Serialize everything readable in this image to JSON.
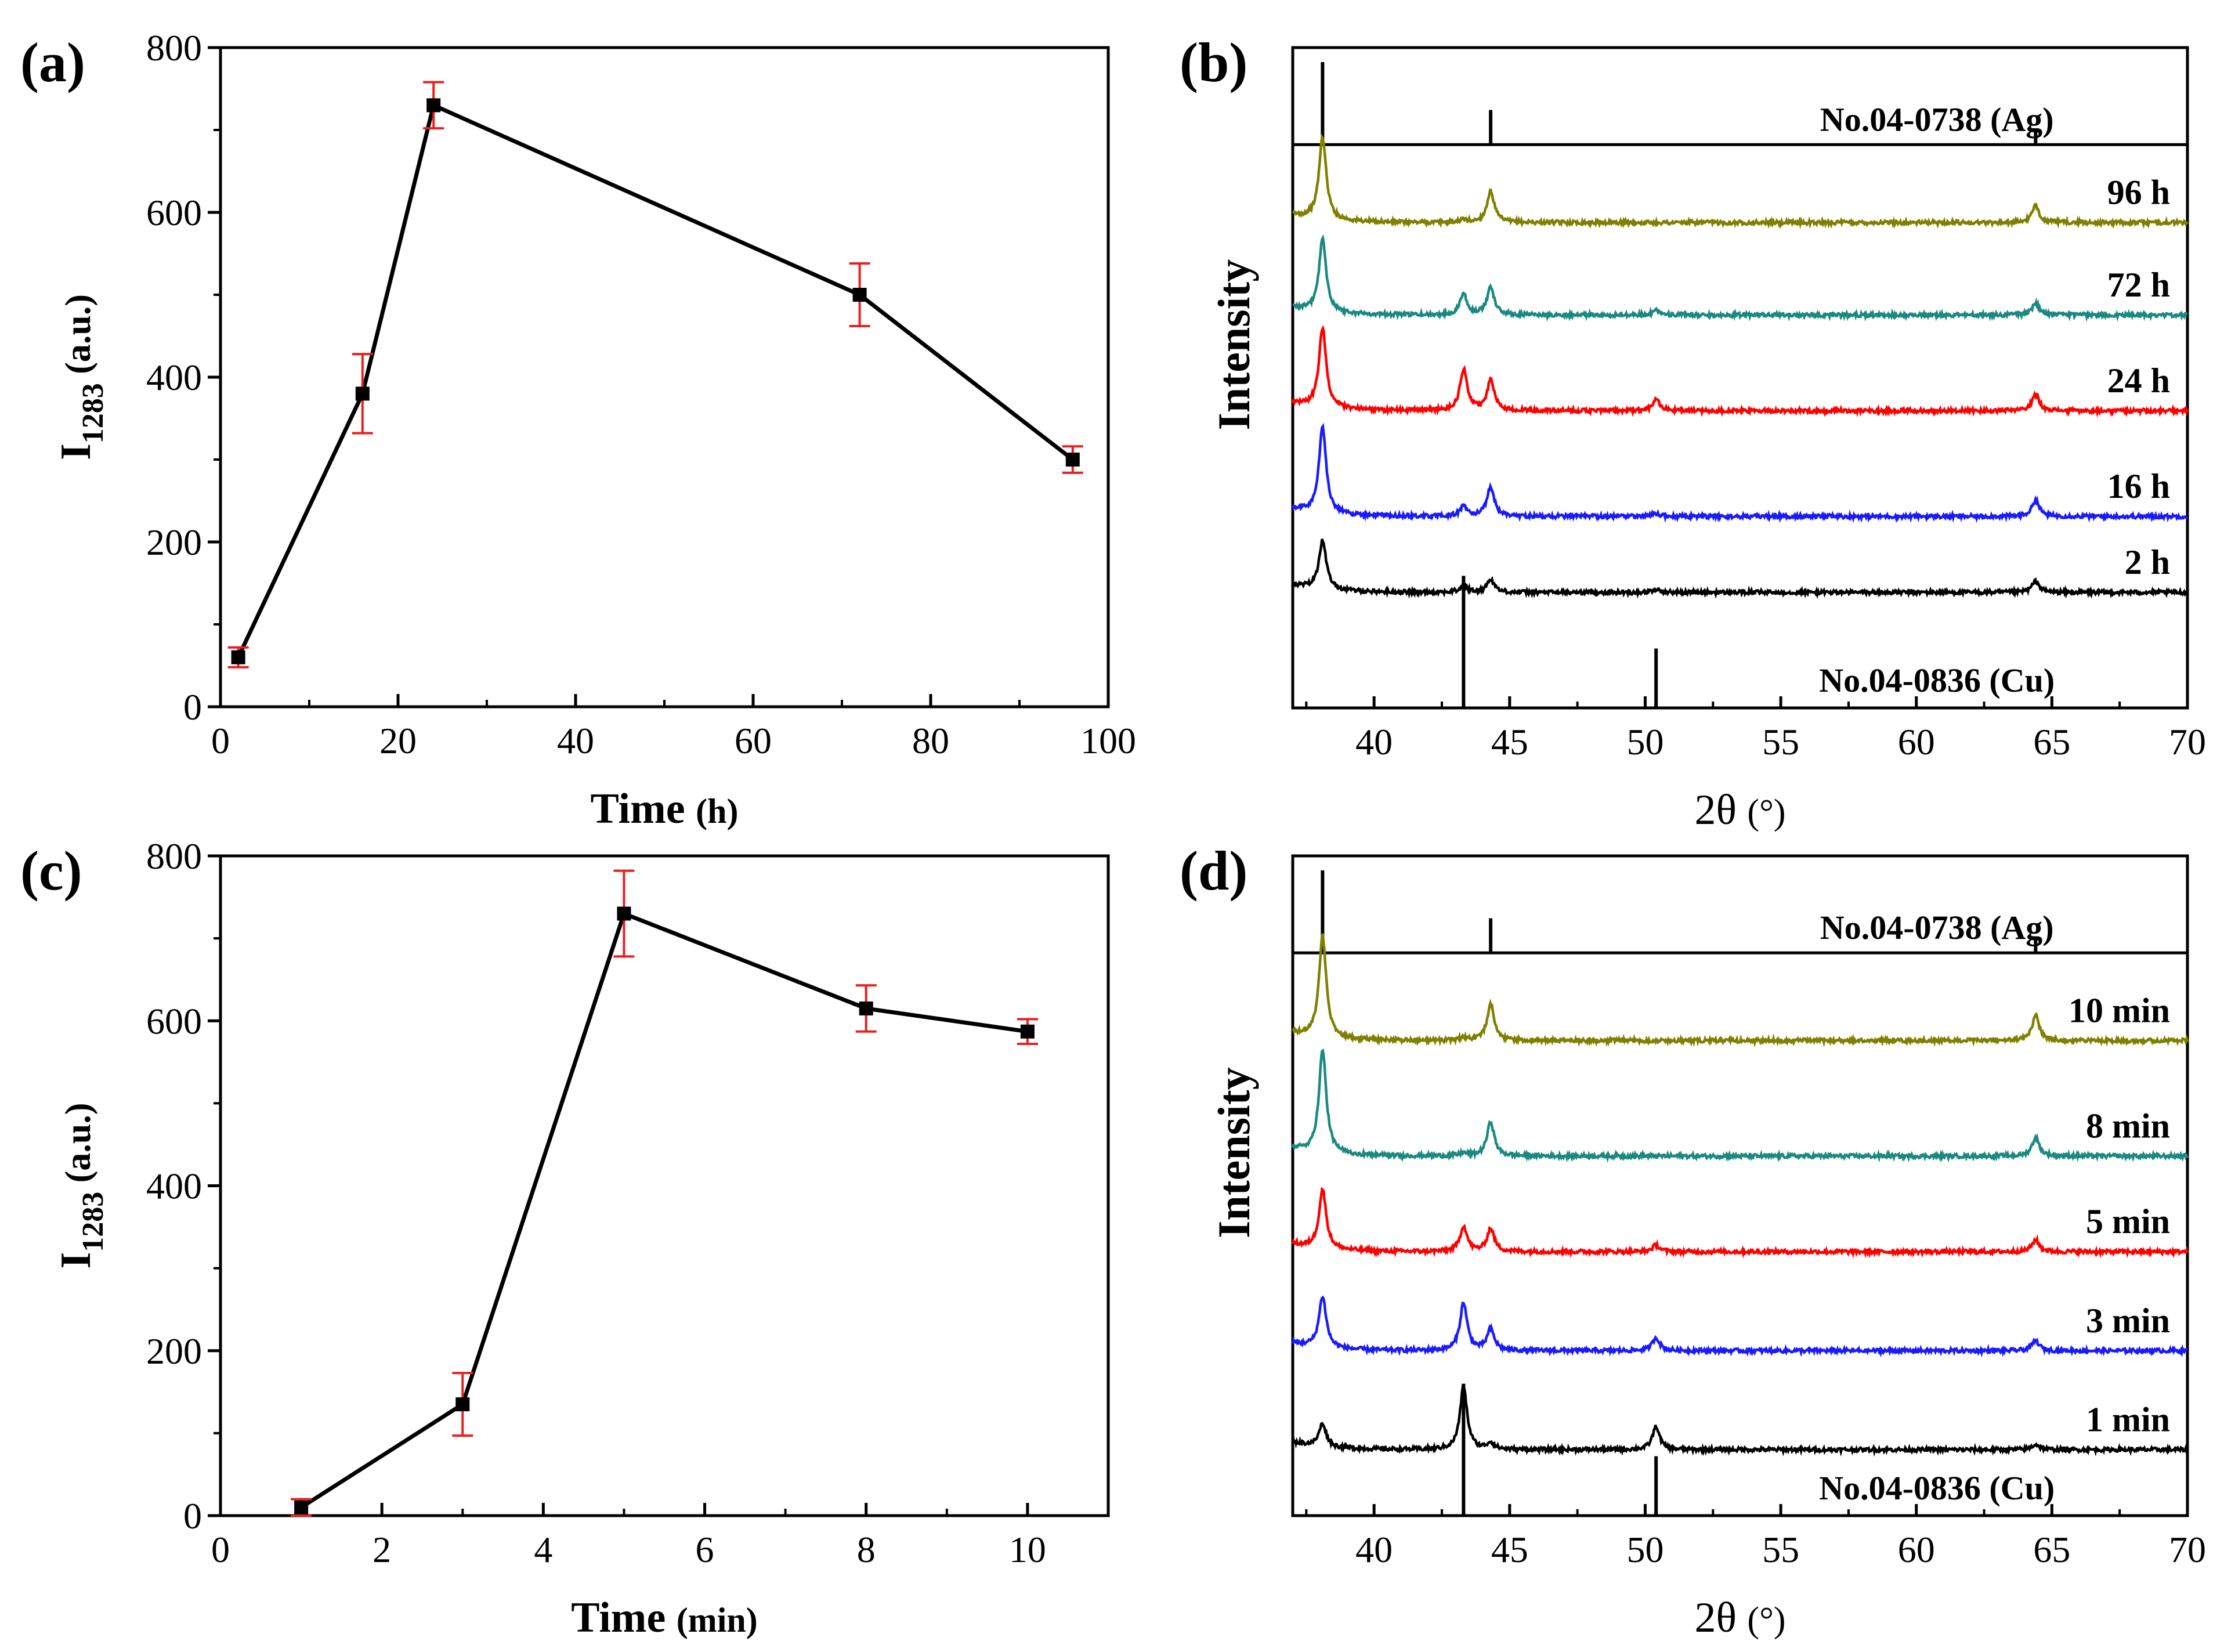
{
  "chart_data": [
    {
      "panel_label": "(a)",
      "type": "line",
      "xlabel": "Time",
      "xunit": "(h)",
      "ylabel": "I",
      "ylabel_sub": "1283",
      "yunit": "(a.u.)",
      "xlim": [
        0,
        100
      ],
      "ylim": [
        0,
        800
      ],
      "xticks": [
        0,
        20,
        40,
        60,
        80,
        100
      ],
      "yticks": [
        0,
        200,
        400,
        600,
        800
      ],
      "x": [
        2,
        16,
        24,
        72,
        96
      ],
      "y": [
        60,
        380,
        730,
        500,
        300
      ],
      "yerr": [
        12,
        48,
        28,
        38,
        16
      ],
      "colors": {
        "line": "#000000",
        "marker": "#000000",
        "errorbar": "#e8201f"
      }
    },
    {
      "panel_label": "(b)",
      "type": "line",
      "xlabel": "2θ",
      "xunit": "(°)",
      "ylabel": "Intensity",
      "xlim": [
        37,
        70
      ],
      "xticks": [
        40,
        45,
        50,
        55,
        60,
        65,
        70
      ],
      "reference_top": {
        "label": "No.04-0738 (Ag)",
        "peaks": [
          38.1,
          44.3,
          64.4
        ],
        "heights": [
          1.0,
          0.42,
          0.18
        ]
      },
      "reference_bottom": {
        "label": "No.04-0836 (Cu)",
        "peaks": [
          43.3,
          50.4
        ],
        "heights": [
          1.0,
          0.45
        ]
      },
      "series": [
        {
          "name": "96 h",
          "color": "#808000",
          "baseline": 0.735,
          "peaks": [
            [
              38.1,
              0.125
            ],
            [
              43.3,
              0.004
            ],
            [
              44.3,
              0.048
            ],
            [
              50.4,
              0.0
            ],
            [
              64.4,
              0.025
            ]
          ]
        },
        {
          "name": "72 h",
          "color": "#1a8a80",
          "baseline": 0.595,
          "peaks": [
            [
              38.1,
              0.11
            ],
            [
              43.3,
              0.032
            ],
            [
              44.3,
              0.042
            ],
            [
              50.4,
              0.008
            ],
            [
              64.4,
              0.018
            ]
          ]
        },
        {
          "name": "24 h",
          "color": "#ff0000",
          "baseline": 0.45,
          "peaks": [
            [
              38.1,
              0.122
            ],
            [
              43.3,
              0.062
            ],
            [
              44.3,
              0.045
            ],
            [
              50.4,
              0.018
            ],
            [
              64.4,
              0.025
            ]
          ]
        },
        {
          "name": "16 h",
          "color": "#1a1aff",
          "baseline": 0.29,
          "peaks": [
            [
              38.1,
              0.13
            ],
            [
              43.3,
              0.015
            ],
            [
              44.3,
              0.045
            ],
            [
              50.4,
              0.004
            ],
            [
              64.4,
              0.025
            ]
          ]
        },
        {
          "name": "2 h",
          "color": "#000000",
          "baseline": 0.175,
          "peaks": [
            [
              38.1,
              0.075
            ],
            [
              43.3,
              0.01
            ],
            [
              44.3,
              0.02
            ],
            [
              50.4,
              0.004
            ],
            [
              64.4,
              0.017
            ]
          ]
        }
      ]
    },
    {
      "panel_label": "(c)",
      "type": "line",
      "xlabel": "Time",
      "xunit": "(min)",
      "ylabel": "I",
      "ylabel_sub": "1283",
      "yunit": "(a.u.)",
      "xlim": [
        0,
        11
      ],
      "ylim": [
        0,
        800
      ],
      "xticks": [
        0,
        2,
        4,
        6,
        8,
        10
      ],
      "yticks": [
        0,
        200,
        400,
        600,
        800
      ],
      "x": [
        1,
        3,
        5,
        8,
        10
      ],
      "y": [
        10,
        135,
        730,
        615,
        587
      ],
      "yerr": [
        10,
        38,
        52,
        28,
        15
      ],
      "colors": {
        "line": "#000000",
        "marker": "#000000",
        "errorbar": "#e8201f"
      }
    },
    {
      "panel_label": "(d)",
      "type": "line",
      "xlabel": "2θ",
      "xunit": "(°)",
      "ylabel": "Intensity",
      "xlim": [
        37,
        70
      ],
      "xticks": [
        40,
        45,
        50,
        55,
        60,
        65,
        70
      ],
      "reference_top": {
        "label": "No.04-0738 (Ag)",
        "peaks": [
          38.1,
          44.3,
          64.4
        ],
        "heights": [
          1.0,
          0.42,
          0.18
        ]
      },
      "reference_bottom": {
        "label": "No.04-0836 (Cu)",
        "peaks": [
          43.3,
          50.4
        ],
        "heights": [
          1.0,
          0.45
        ]
      },
      "series": [
        {
          "name": "10 min",
          "color": "#808000",
          "baseline": 0.72,
          "peaks": [
            [
              38.1,
              0.155
            ],
            [
              43.3,
              0.004
            ],
            [
              44.3,
              0.055
            ],
            [
              50.4,
              0.0
            ],
            [
              64.4,
              0.038
            ]
          ]
        },
        {
          "name": "8 min",
          "color": "#1a8a80",
          "baseline": 0.545,
          "peaks": [
            [
              38.1,
              0.158
            ],
            [
              43.3,
              0.004
            ],
            [
              44.3,
              0.052
            ],
            [
              50.4,
              0.0
            ],
            [
              64.4,
              0.028
            ]
          ]
        },
        {
          "name": "5 min",
          "color": "#ff0000",
          "baseline": 0.4,
          "peaks": [
            [
              38.1,
              0.09
            ],
            [
              43.3,
              0.038
            ],
            [
              44.3,
              0.035
            ],
            [
              50.4,
              0.01
            ],
            [
              64.4,
              0.018
            ]
          ]
        },
        {
          "name": "3 min",
          "color": "#1a1aff",
          "baseline": 0.25,
          "peaks": [
            [
              38.1,
              0.078
            ],
            [
              43.3,
              0.072
            ],
            [
              44.3,
              0.032
            ],
            [
              50.4,
              0.02
            ],
            [
              64.4,
              0.015
            ]
          ]
        },
        {
          "name": "1 min",
          "color": "#000000",
          "baseline": 0.1,
          "peaks": [
            [
              38.1,
              0.035
            ],
            [
              43.3,
              0.095
            ],
            [
              44.3,
              0.01
            ],
            [
              50.4,
              0.035
            ],
            [
              64.4,
              0.008
            ]
          ]
        }
      ]
    }
  ]
}
